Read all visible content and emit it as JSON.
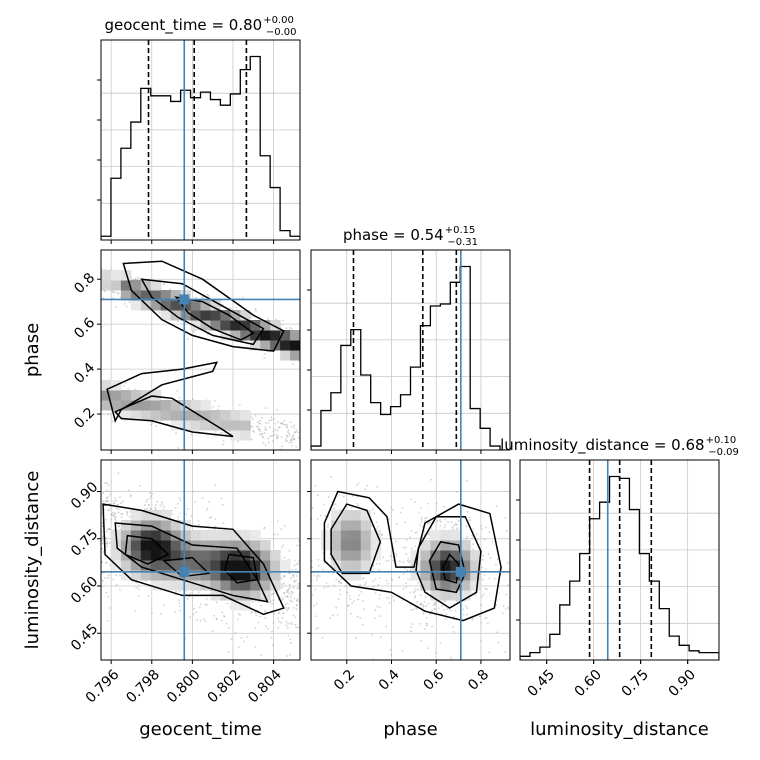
{
  "chart_data": {
    "type": "corner",
    "parameters": [
      "geocent_time",
      "phase",
      "luminosity_distance"
    ],
    "axis_labels": [
      "geocent_time",
      "phase",
      "luminosity_distance"
    ],
    "truth": {
      "geocent_time": 0.7996,
      "phase": 0.71,
      "luminosity_distance": 0.645
    },
    "colors": {
      "truth": "#4682b4",
      "hist": "#000000",
      "grid": "#c8c8c8",
      "scatter": "#9a9a9a"
    },
    "grid": true,
    "panels": [
      {
        "type": "histogram",
        "param": "geocent_time",
        "title": {
          "name": "geocent_time",
          "median": "0.80",
          "plus": "+0.00",
          "minus": "−0.00"
        },
        "xlim": [
          0.7955,
          0.8053
        ],
        "quantiles": [
          0.79784,
          0.80009,
          0.80266
        ],
        "bin_edges": [
          0.7955,
          0.79599,
          0.79648,
          0.79697,
          0.79746,
          0.79795,
          0.79844,
          0.79893,
          0.79942,
          0.79991,
          0.8004,
          0.80089,
          0.80138,
          0.80187,
          0.80236,
          0.80285,
          0.80334,
          0.80383,
          0.80432,
          0.80481,
          0.8053
        ],
        "counts": [
          0.02,
          0.33,
          0.49,
          0.63,
          0.81,
          0.77,
          0.77,
          0.74,
          0.8,
          0.76,
          0.79,
          0.75,
          0.72,
          0.78,
          0.91,
          0.98,
          0.45,
          0.28,
          0.05,
          0.02
        ]
      },
      {
        "type": "histogram",
        "param": "phase",
        "title": {
          "name": "phase",
          "median": "0.54",
          "plus": "+0.15",
          "minus": "−0.31"
        },
        "xlim": [
          0.04,
          0.93
        ],
        "quantiles": [
          0.23,
          0.54,
          0.69
        ],
        "bin_edges": [
          0.04,
          0.0845,
          0.129,
          0.1735,
          0.218,
          0.2625,
          0.307,
          0.3515,
          0.396,
          0.4405,
          0.485,
          0.5295,
          0.574,
          0.6185,
          0.663,
          0.7075,
          0.752,
          0.7965,
          0.841,
          0.8855,
          0.93
        ],
        "counts": [
          0.02,
          0.2,
          0.29,
          0.53,
          0.61,
          0.38,
          0.24,
          0.18,
          0.22,
          0.28,
          0.42,
          0.63,
          0.73,
          0.74,
          0.85,
          0.93,
          0.21,
          0.11,
          0.02,
          0.0
        ]
      },
      {
        "type": "histogram",
        "param": "luminosity_distance",
        "title": {
          "name": "luminosity_distance",
          "median": "0.68",
          "plus": "+0.10",
          "minus": "−0.09"
        },
        "xlim": [
          0.365,
          1.0
        ],
        "quantiles": [
          0.587,
          0.683,
          0.784
        ],
        "bin_edges": [
          0.365,
          0.39675,
          0.4285,
          0.46025,
          0.492,
          0.52375,
          0.5555,
          0.58725,
          0.619,
          0.65075,
          0.6825,
          0.71425,
          0.746,
          0.77775,
          0.8095,
          0.84125,
          0.873,
          0.90475,
          0.9365,
          0.96825,
          1.0
        ],
        "counts": [
          0.02,
          0.04,
          0.07,
          0.14,
          0.3,
          0.43,
          0.58,
          0.77,
          0.86,
          1.0,
          0.99,
          0.82,
          0.58,
          0.43,
          0.28,
          0.13,
          0.08,
          0.05,
          0.04,
          0.04
        ]
      },
      {
        "type": "hist2d",
        "x": "geocent_time",
        "y": "phase",
        "xlim": [
          0.7955,
          0.8053
        ],
        "ylim": [
          0.04,
          0.93
        ],
        "yticks": [
          0.2,
          0.4,
          0.6,
          0.8
        ],
        "ytick_labels": [
          "0.2",
          "0.4",
          "0.6",
          "0.8"
        ]
      },
      {
        "type": "hist2d",
        "x": "geocent_time",
        "y": "luminosity_distance",
        "xlim": [
          0.7955,
          0.8053
        ],
        "ylim": [
          0.365,
          1.0
        ],
        "xticks": [
          0.796,
          0.798,
          0.8,
          0.802,
          0.804
        ],
        "xtick_labels": [
          "0.796",
          "0.798",
          "0.800",
          "0.802",
          "0.804"
        ],
        "yticks": [
          0.45,
          0.6,
          0.75,
          0.9
        ],
        "ytick_labels": [
          "0.45",
          "0.60",
          "0.75",
          "0.90"
        ]
      },
      {
        "type": "hist2d",
        "x": "phase",
        "y": "luminosity_distance",
        "xlim": [
          0.04,
          0.93
        ],
        "ylim": [
          0.365,
          1.0
        ],
        "xticks": [
          0.2,
          0.4,
          0.6,
          0.8
        ],
        "xtick_labels": [
          "0.2",
          "0.4",
          "0.6",
          "0.8"
        ]
      },
      {
        "type": "axis",
        "param": "luminosity_distance",
        "xlim": [
          0.365,
          1.0
        ],
        "xticks": [
          0.45,
          0.6,
          0.75,
          0.9
        ],
        "xtick_labels": [
          "0.45",
          "0.60",
          "0.75",
          "0.90"
        ]
      }
    ]
  }
}
